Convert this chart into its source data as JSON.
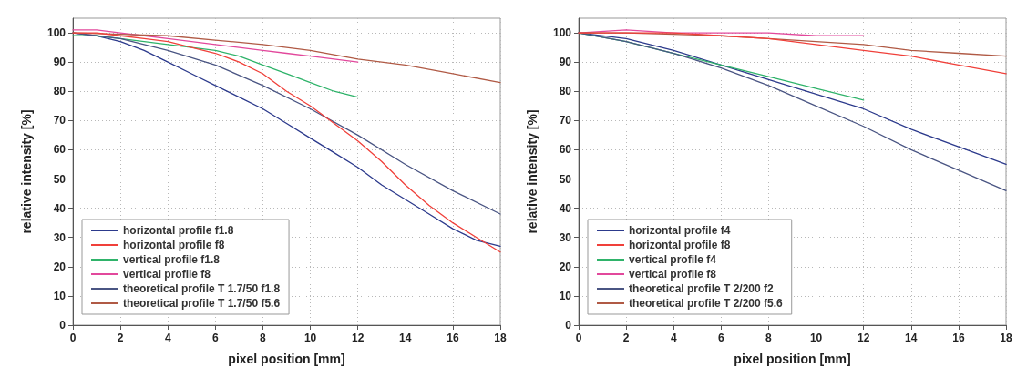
{
  "chart_data": [
    {
      "type": "line",
      "xlabel": "pixel position [mm]",
      "ylabel": "relative intensity [%]",
      "xlim": [
        0,
        18
      ],
      "ylim": [
        0,
        105
      ],
      "xticks": [
        0,
        2,
        4,
        6,
        8,
        10,
        12,
        14,
        16,
        18
      ],
      "yticks": [
        0,
        10,
        20,
        30,
        40,
        50,
        60,
        70,
        80,
        90,
        100
      ],
      "grid": true,
      "legend": "bottom left",
      "marker": "none",
      "line_style": "solid",
      "series": [
        {
          "name": "horizontal profile f1.8",
          "color": "#2c3a8c",
          "x": [
            0,
            1,
            2,
            3,
            4,
            5,
            6,
            7,
            8,
            9,
            10,
            11,
            12,
            13,
            14,
            15,
            16,
            17,
            18
          ],
          "values": [
            100,
            99,
            97,
            94,
            90,
            86,
            82,
            78,
            74,
            69,
            64,
            59,
            54,
            48,
            43,
            38,
            33,
            29,
            27
          ]
        },
        {
          "name": "horizontal profile f8",
          "color": "#f0403a",
          "x": [
            0,
            1,
            2,
            3,
            4,
            5,
            6,
            7,
            8,
            9,
            10,
            11,
            12,
            13,
            14,
            15,
            16,
            17,
            18
          ],
          "values": [
            100,
            100,
            99,
            98,
            97,
            95,
            93,
            90,
            86,
            80,
            75,
            69,
            63,
            56,
            48,
            41,
            35,
            30,
            25
          ]
        },
        {
          "name": "vertical profile f1.8",
          "color": "#2fb36a",
          "x": [
            0,
            1,
            2,
            3,
            4,
            5,
            6,
            7,
            8,
            9,
            10,
            11,
            12
          ],
          "values": [
            99,
            99,
            98,
            97,
            96,
            95,
            94,
            92,
            89,
            86,
            83,
            80,
            78
          ]
        },
        {
          "name": "vertical profile f8",
          "color": "#e2489c",
          "x": [
            0,
            1,
            2,
            3,
            4,
            5,
            6,
            7,
            8,
            9,
            10,
            11,
            12
          ],
          "values": [
            101,
            101,
            100,
            99,
            98,
            97,
            96,
            95,
            94,
            93,
            92,
            91,
            90
          ]
        },
        {
          "name": "theoretical profile T 1.7/50 f1.8",
          "color": "#4a5583",
          "x": [
            0,
            2,
            4,
            6,
            8,
            10,
            12,
            14,
            16,
            18
          ],
          "values": [
            100,
            98,
            94,
            89,
            82,
            74,
            65,
            55,
            46,
            38
          ]
        },
        {
          "name": "theoretical profile T 1.7/50 f5.6",
          "color": "#b05a45",
          "x": [
            0,
            2,
            4,
            6,
            8,
            10,
            12,
            14,
            16,
            18
          ],
          "values": [
            100,
            99.5,
            99,
            97.5,
            96,
            94,
            91,
            89,
            86,
            83
          ]
        }
      ]
    },
    {
      "type": "line",
      "xlabel": "pixel position [mm]",
      "ylabel": "relative intensity [%]",
      "xlim": [
        0,
        18
      ],
      "ylim": [
        0,
        105
      ],
      "xticks": [
        0,
        2,
        4,
        6,
        8,
        10,
        12,
        14,
        16,
        18
      ],
      "yticks": [
        0,
        10,
        20,
        30,
        40,
        50,
        60,
        70,
        80,
        90,
        100
      ],
      "grid": true,
      "legend": "bottom left",
      "marker": "none",
      "line_style": "solid",
      "series": [
        {
          "name": "horizontal profile f4",
          "color": "#2c3a8c",
          "x": [
            0,
            2,
            4,
            6,
            8,
            10,
            12,
            14,
            16,
            18
          ],
          "values": [
            100,
            98,
            94,
            89,
            84,
            79,
            74,
            67,
            61,
            55
          ]
        },
        {
          "name": "horizontal profile f8",
          "color": "#f0403a",
          "x": [
            0,
            2,
            4,
            6,
            8,
            10,
            12,
            14,
            16,
            18
          ],
          "values": [
            100,
            100,
            100,
            99,
            98,
            96,
            94,
            92,
            89,
            86
          ]
        },
        {
          "name": "vertical profile f4",
          "color": "#2fb36a",
          "x": [
            0,
            2,
            4,
            6,
            8,
            10,
            12
          ],
          "values": [
            100,
            97,
            93,
            89,
            85,
            81,
            77
          ]
        },
        {
          "name": "vertical profile f8",
          "color": "#e2489c",
          "x": [
            0,
            2,
            4,
            6,
            8,
            10,
            12
          ],
          "values": [
            100,
            101,
            100,
            100,
            100,
            99,
            99
          ]
        },
        {
          "name": "theoretical profile T 2/200 f2",
          "color": "#4a5583",
          "x": [
            0,
            2,
            4,
            6,
            8,
            10,
            12,
            14,
            16,
            18
          ],
          "values": [
            100,
            97,
            93,
            88,
            82,
            75,
            68,
            60,
            53,
            46
          ]
        },
        {
          "name": "theoretical profile T 2/200 f5.6",
          "color": "#b05a45",
          "x": [
            0,
            2,
            4,
            6,
            8,
            10,
            12,
            14,
            16,
            18
          ],
          "values": [
            100,
            100,
            99.5,
            99,
            98,
            97,
            96,
            94,
            93,
            92
          ]
        }
      ]
    }
  ]
}
